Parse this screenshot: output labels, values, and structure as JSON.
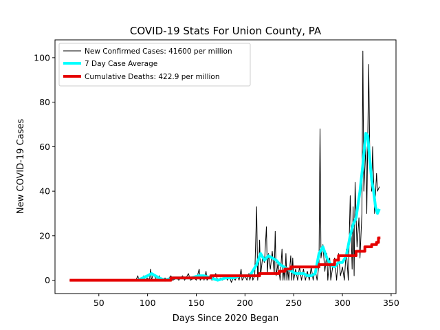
{
  "chart_data": {
    "type": "line",
    "title": "COVID-19 Stats For Union County, PA",
    "xlabel": "Days Since 2020 Began",
    "ylabel": "New COVID-19 Cases",
    "xlim": [
      5,
      355
    ],
    "ylim": [
      -6,
      108
    ],
    "xticks": [
      50,
      100,
      150,
      200,
      250,
      300,
      350
    ],
    "yticks": [
      0,
      20,
      40,
      60,
      80,
      100
    ],
    "grid": false,
    "legend_position": "top-left",
    "series": [
      {
        "name": "New Confirmed Cases: 41600 per million",
        "color": "#000000",
        "style": "thin",
        "points": [
          [
            20,
            0
          ],
          [
            60,
            0
          ],
          [
            88,
            0
          ],
          [
            90,
            2
          ],
          [
            91,
            0
          ],
          [
            95,
            0
          ],
          [
            96,
            2
          ],
          [
            97,
            0
          ],
          [
            100,
            1
          ],
          [
            102,
            0
          ],
          [
            103,
            5
          ],
          [
            104,
            0
          ],
          [
            106,
            3
          ],
          [
            108,
            1
          ],
          [
            110,
            0
          ],
          [
            112,
            2
          ],
          [
            114,
            0
          ],
          [
            118,
            1
          ],
          [
            120,
            0
          ],
          [
            124,
            2
          ],
          [
            126,
            0
          ],
          [
            130,
            1
          ],
          [
            132,
            0
          ],
          [
            136,
            2
          ],
          [
            138,
            0
          ],
          [
            142,
            3
          ],
          [
            144,
            0
          ],
          [
            148,
            1
          ],
          [
            150,
            0
          ],
          [
            153,
            5
          ],
          [
            154,
            0
          ],
          [
            157,
            2
          ],
          [
            158,
            0
          ],
          [
            160,
            4
          ],
          [
            161,
            0
          ],
          [
            164,
            2
          ],
          [
            166,
            0
          ],
          [
            170,
            3
          ],
          [
            172,
            0
          ],
          [
            175,
            1
          ],
          [
            177,
            0
          ],
          [
            180,
            2
          ],
          [
            182,
            0
          ],
          [
            184,
            2
          ],
          [
            186,
            -1
          ],
          [
            188,
            1
          ],
          [
            190,
            0
          ],
          [
            192,
            2
          ],
          [
            194,
            0
          ],
          [
            196,
            5
          ],
          [
            197,
            0
          ],
          [
            200,
            2
          ],
          [
            202,
            0
          ],
          [
            204,
            3
          ],
          [
            205,
            0
          ],
          [
            207,
            4
          ],
          [
            208,
            0
          ],
          [
            210,
            2
          ],
          [
            212,
            33
          ],
          [
            213,
            0
          ],
          [
            214,
            5
          ],
          [
            215,
            18
          ],
          [
            216,
            2
          ],
          [
            218,
            10
          ],
          [
            220,
            8
          ],
          [
            222,
            24
          ],
          [
            223,
            3
          ],
          [
            224,
            12
          ],
          [
            226,
            5
          ],
          [
            228,
            13
          ],
          [
            230,
            3
          ],
          [
            231,
            22
          ],
          [
            232,
            2
          ],
          [
            234,
            8
          ],
          [
            236,
            0
          ],
          [
            238,
            14
          ],
          [
            239,
            0
          ],
          [
            240,
            5
          ],
          [
            241,
            0
          ],
          [
            242,
            12
          ],
          [
            243,
            0
          ],
          [
            244,
            5
          ],
          [
            245,
            0
          ],
          [
            247,
            11
          ],
          [
            248,
            0
          ],
          [
            249,
            10
          ],
          [
            250,
            0
          ],
          [
            252,
            5
          ],
          [
            254,
            0
          ],
          [
            256,
            6
          ],
          [
            258,
            0
          ],
          [
            260,
            5
          ],
          [
            262,
            0
          ],
          [
            264,
            4
          ],
          [
            266,
            0
          ],
          [
            268,
            6
          ],
          [
            270,
            0
          ],
          [
            272,
            5
          ],
          [
            274,
            0
          ],
          [
            276,
            7
          ],
          [
            277,
            68
          ],
          [
            278,
            10
          ],
          [
            280,
            16
          ],
          [
            282,
            4
          ],
          [
            284,
            12
          ],
          [
            285,
            0
          ],
          [
            287,
            10
          ],
          [
            288,
            0
          ],
          [
            290,
            6
          ],
          [
            292,
            10
          ],
          [
            294,
            0
          ],
          [
            296,
            12
          ],
          [
            298,
            2
          ],
          [
            300,
            6
          ],
          [
            302,
            0
          ],
          [
            304,
            14
          ],
          [
            306,
            0
          ],
          [
            308,
            38
          ],
          [
            310,
            5
          ],
          [
            311,
            33
          ],
          [
            312,
            2
          ],
          [
            313,
            44
          ],
          [
            315,
            15
          ],
          [
            317,
            28
          ],
          [
            318,
            10
          ],
          [
            320,
            30
          ],
          [
            321,
            103
          ],
          [
            322,
            40
          ],
          [
            324,
            60
          ],
          [
            325,
            30
          ],
          [
            327,
            97
          ],
          [
            328,
            60
          ],
          [
            330,
            40
          ],
          [
            331,
            60
          ],
          [
            333,
            30
          ],
          [
            335,
            48
          ],
          [
            336,
            40
          ],
          [
            338,
            42
          ]
        ]
      },
      {
        "name": "7 Day Case Average",
        "color": "#00ffff",
        "style": "thick",
        "points": [
          [
            90,
            0
          ],
          [
            95,
            1
          ],
          [
            100,
            2
          ],
          [
            104,
            3
          ],
          [
            108,
            2
          ],
          [
            112,
            1
          ],
          [
            118,
            0
          ],
          [
            125,
            1
          ],
          [
            135,
            1
          ],
          [
            145,
            1
          ],
          [
            152,
            2
          ],
          [
            158,
            2
          ],
          [
            165,
            1
          ],
          [
            172,
            0
          ],
          [
            180,
            1
          ],
          [
            188,
            1
          ],
          [
            195,
            2
          ],
          [
            205,
            2
          ],
          [
            212,
            7
          ],
          [
            216,
            12
          ],
          [
            220,
            9
          ],
          [
            224,
            11
          ],
          [
            228,
            10
          ],
          [
            232,
            9
          ],
          [
            236,
            7
          ],
          [
            240,
            6
          ],
          [
            244,
            5
          ],
          [
            248,
            4
          ],
          [
            252,
            3
          ],
          [
            256,
            3
          ],
          [
            260,
            3
          ],
          [
            264,
            2
          ],
          [
            268,
            2
          ],
          [
            272,
            3
          ],
          [
            276,
            12
          ],
          [
            280,
            15
          ],
          [
            284,
            10
          ],
          [
            288,
            7
          ],
          [
            292,
            6
          ],
          [
            296,
            8
          ],
          [
            300,
            8
          ],
          [
            304,
            11
          ],
          [
            308,
            20
          ],
          [
            311,
            25
          ],
          [
            314,
            28
          ],
          [
            318,
            40
          ],
          [
            321,
            52
          ],
          [
            324,
            66
          ],
          [
            326,
            65
          ],
          [
            328,
            55
          ],
          [
            330,
            45
          ],
          [
            332,
            40
          ],
          [
            334,
            33
          ],
          [
            336,
            30
          ],
          [
            338,
            32
          ]
        ]
      },
      {
        "name": "Cumulative Deaths: 422.9 per million",
        "color": "#e50000",
        "style": "thick",
        "points": [
          [
            20,
            0
          ],
          [
            124,
            0
          ],
          [
            124,
            1
          ],
          [
            165,
            1
          ],
          [
            165,
            2
          ],
          [
            215,
            2
          ],
          [
            215,
            3
          ],
          [
            235,
            3
          ],
          [
            235,
            4
          ],
          [
            241,
            4
          ],
          [
            241,
            5
          ],
          [
            247,
            5
          ],
          [
            247,
            6
          ],
          [
            276,
            6
          ],
          [
            276,
            7
          ],
          [
            292,
            7
          ],
          [
            292,
            9
          ],
          [
            296,
            9
          ],
          [
            296,
            11
          ],
          [
            314,
            11
          ],
          [
            314,
            13
          ],
          [
            323,
            13
          ],
          [
            323,
            15
          ],
          [
            330,
            15
          ],
          [
            330,
            16
          ],
          [
            335,
            16
          ],
          [
            335,
            17
          ],
          [
            337,
            17
          ],
          [
            337,
            19
          ],
          [
            339,
            19
          ]
        ]
      }
    ]
  }
}
